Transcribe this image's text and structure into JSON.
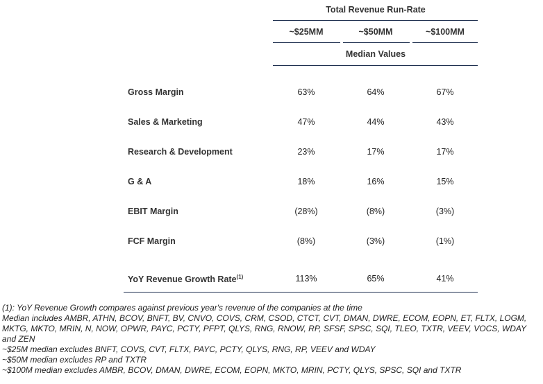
{
  "header": {
    "group": "Total Revenue Run-Rate",
    "columns": [
      "~$25MM",
      "~$50MM",
      "~$100MM"
    ],
    "subtitle": "Median Values"
  },
  "table": {
    "rows": [
      {
        "label": "Gross Margin",
        "values": [
          "63%",
          "64%",
          "67%"
        ]
      },
      {
        "label": "Sales & Marketing",
        "values": [
          "47%",
          "44%",
          "43%"
        ]
      },
      {
        "label": "Research & Development",
        "values": [
          "23%",
          "17%",
          "17%"
        ]
      },
      {
        "label": "G & A",
        "values": [
          "18%",
          "16%",
          "15%"
        ]
      },
      {
        "label": "EBIT Margin",
        "values": [
          "(28%)",
          "(8%)",
          "(3%)"
        ]
      },
      {
        "label": "FCF Margin",
        "values": [
          "(8%)",
          "(3%)",
          "(1%)"
        ]
      },
      {
        "label": "YoY Revenue Growth Rate",
        "note": "(1)",
        "values": [
          "113%",
          "65%",
          "41%"
        ]
      }
    ]
  },
  "footnotes": [
    "(1): YoY Revenue Growth compares against previous year's revenue of the companies at the time",
    "Median includes AMBR, ATHN, BCOV, BNFT, BV, CNVO, COVS, CRM, CSOD, CTCT, CVT, DMAN, DWRE, ECOM, EOPN, ET, FLTX, LOGM, MKTG, MKTO, MRIN, N, NOW, OPWR, PAYC, PCTY, PFPT, QLYS, RNG, RNOW, RP, SFSF, SPSC, SQI, TLEO, TXTR, VEEV, VOCS, WDAY and ZEN",
    "~$25M median excludes BNFT, COVS, CVT, FLTX, PAYC, PCTY, QLYS, RNG, RP, VEEV and WDAY",
    "~$50M median excludes RP and TXTR",
    "~$100M median excludes AMBR, BCOV, DMAN, DWRE, ECOM, EOPN, MKTO, MRIN, PCTY, QLYS, SPSC, SQI and TXTR"
  ]
}
